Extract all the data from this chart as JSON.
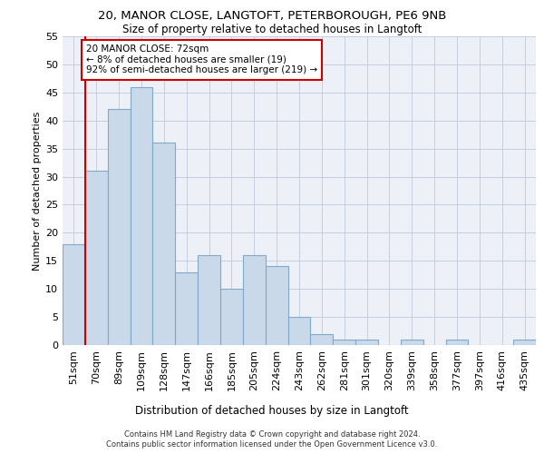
{
  "title1": "20, MANOR CLOSE, LANGTOFT, PETERBOROUGH, PE6 9NB",
  "title2": "Size of property relative to detached houses in Langtoft",
  "xlabel": "Distribution of detached houses by size in Langtoft",
  "ylabel": "Number of detached properties",
  "categories": [
    "51sqm",
    "70sqm",
    "89sqm",
    "109sqm",
    "128sqm",
    "147sqm",
    "166sqm",
    "185sqm",
    "205sqm",
    "224sqm",
    "243sqm",
    "262sqm",
    "281sqm",
    "301sqm",
    "320sqm",
    "339sqm",
    "358sqm",
    "377sqm",
    "397sqm",
    "416sqm",
    "435sqm"
  ],
  "values": [
    18,
    31,
    42,
    46,
    36,
    13,
    16,
    10,
    16,
    14,
    5,
    2,
    1,
    1,
    0,
    1,
    0,
    1,
    0,
    0,
    1
  ],
  "bar_color": "#c9d9ea",
  "bar_edge_color": "#7fa8c9",
  "vline_color": "#cc0000",
  "annotation_box_color": "#cc0000",
  "ylim": [
    0,
    55
  ],
  "yticks": [
    0,
    5,
    10,
    15,
    20,
    25,
    30,
    35,
    40,
    45,
    50,
    55
  ],
  "annotation_line1": "20 MANOR CLOSE: 72sqm",
  "annotation_line2": "← 8% of detached houses are smaller (19)",
  "annotation_line3": "92% of semi-detached houses are larger (219) →",
  "footer_line1": "Contains HM Land Registry data © Crown copyright and database right 2024.",
  "footer_line2": "Contains public sector information licensed under the Open Government Licence v3.0.",
  "bg_color": "#edf1f7",
  "grid_color": "#c5cedd"
}
